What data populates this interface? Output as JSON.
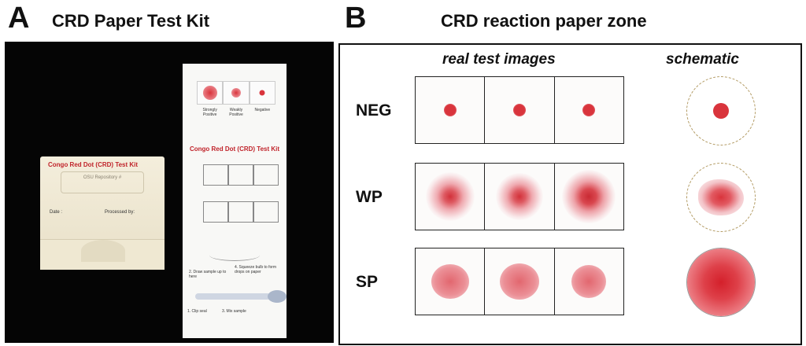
{
  "panel_a": {
    "letter": "A",
    "title": "CRD Paper Test Kit",
    "box": {
      "title": "Congo Red Dot (CRD) Test Kit",
      "label": "OSU Repository #",
      "date_label": "Date :",
      "processed_label": "Processed by:"
    },
    "strip": {
      "ref_labels": [
        "Strongly Positive",
        "Weakly Positive",
        "Negative"
      ],
      "title": "Congo Red Dot (CRD) Test Kit",
      "instructions": {
        "step1": "1. Clip seal",
        "step2": "2. Draw sample up to here",
        "step3": "3. Mix sample",
        "step4": "4. Squeeze bulb to form drops on paper"
      }
    }
  },
  "panel_b": {
    "letter": "B",
    "title": "CRD reaction paper zone",
    "col_real": "real test images",
    "col_schematic": "schematic",
    "rows": [
      {
        "label": "NEG"
      },
      {
        "label": "WP"
      },
      {
        "label": "SP"
      }
    ]
  },
  "colors": {
    "red_text": "#c0232a",
    "spot_red": "#d9343c",
    "spot_pink": "#e98b93"
  }
}
